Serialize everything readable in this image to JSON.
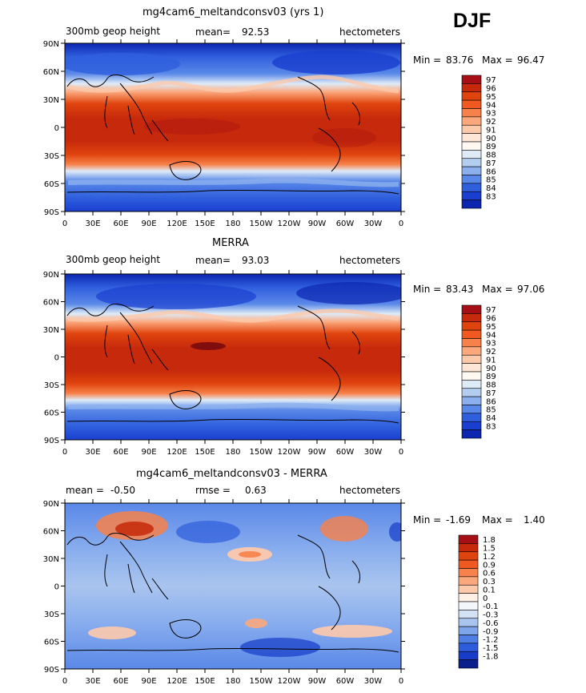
{
  "season": "DJF",
  "units_colorbar_note": "",
  "lat_ticks": [
    "90N",
    "60N",
    "30N",
    "0",
    "30S",
    "60S",
    "90S"
  ],
  "lon_ticks": [
    "0",
    "30E",
    "60E",
    "90E",
    "120E",
    "150E",
    "180",
    "150W",
    "120W",
    "90W",
    "60W",
    "30W",
    "0"
  ],
  "chart_data": [
    {
      "type": "heatmap",
      "title": "mg4cam6_meltandconsv03 (yrs 1)",
      "field_label": "300mb geop height",
      "mean_label": "mean=",
      "mean_value": "92.53",
      "units": "hectometers",
      "min_label": "Min =",
      "min_value": "83.76",
      "max_label": "Max =",
      "max_value": "96.47",
      "colorbar_levels": [
        "97",
        "96",
        "95",
        "94",
        "93",
        "92",
        "91",
        "90",
        "89",
        "88",
        "87",
        "86",
        "85",
        "84",
        "83"
      ],
      "colorbar_colors": [
        "#a50f15",
        "#c6290b",
        "#e0440e",
        "#f05a22",
        "#f7814a",
        "#fba77c",
        "#fdc9ab",
        "#fde6d6",
        "#fff7f1",
        "#deebf7",
        "#b3cdf0",
        "#8cb0ee",
        "#5a88e8",
        "#2f5fdd",
        "#1a3fd0",
        "#0c26b0"
      ]
    },
    {
      "type": "heatmap",
      "title": "MERRA",
      "field_label": "300mb geop height",
      "mean_label": "mean=",
      "mean_value": "93.03",
      "units": "hectometers",
      "min_label": "Min =",
      "min_value": "83.43",
      "max_label": "Max =",
      "max_value": "97.06",
      "colorbar_levels": [
        "97",
        "96",
        "95",
        "94",
        "93",
        "92",
        "91",
        "90",
        "89",
        "88",
        "87",
        "86",
        "85",
        "84",
        "83"
      ],
      "colorbar_colors": [
        "#a50f15",
        "#c6290b",
        "#e0440e",
        "#f05a22",
        "#f7814a",
        "#fba77c",
        "#fdc9ab",
        "#fde6d6",
        "#fff7f1",
        "#deebf7",
        "#b3cdf0",
        "#8cb0ee",
        "#5a88e8",
        "#2f5fdd",
        "#1a3fd0",
        "#0c26b0"
      ]
    },
    {
      "type": "heatmap",
      "title": "mg4cam6_meltandconsv03 - MERRA",
      "mean_label": "mean =",
      "mean_value": "-0.50",
      "rmse_label": "rmse =",
      "rmse_value": "0.63",
      "units": "hectometers",
      "min_label": "Min =",
      "min_value": "-1.69",
      "max_label": "Max =",
      "max_value": "1.40",
      "colorbar_levels": [
        "1.8",
        "1.5",
        "1.2",
        "0.9",
        "0.6",
        "0.3",
        "0.1",
        "0",
        "-0.1",
        "-0.3",
        "-0.6",
        "-0.9",
        "-1.2",
        "-1.5",
        "-1.8"
      ],
      "colorbar_colors": [
        "#a50f15",
        "#c6290b",
        "#e0440e",
        "#f05a22",
        "#f7814a",
        "#fba77c",
        "#fdc9ab",
        "#fff0e6",
        "#f3f6fb",
        "#d2e1f4",
        "#a9c4ee",
        "#7ea4ea",
        "#4f7ee5",
        "#2d5cdc",
        "#163cc8",
        "#0a1f8c"
      ]
    }
  ]
}
